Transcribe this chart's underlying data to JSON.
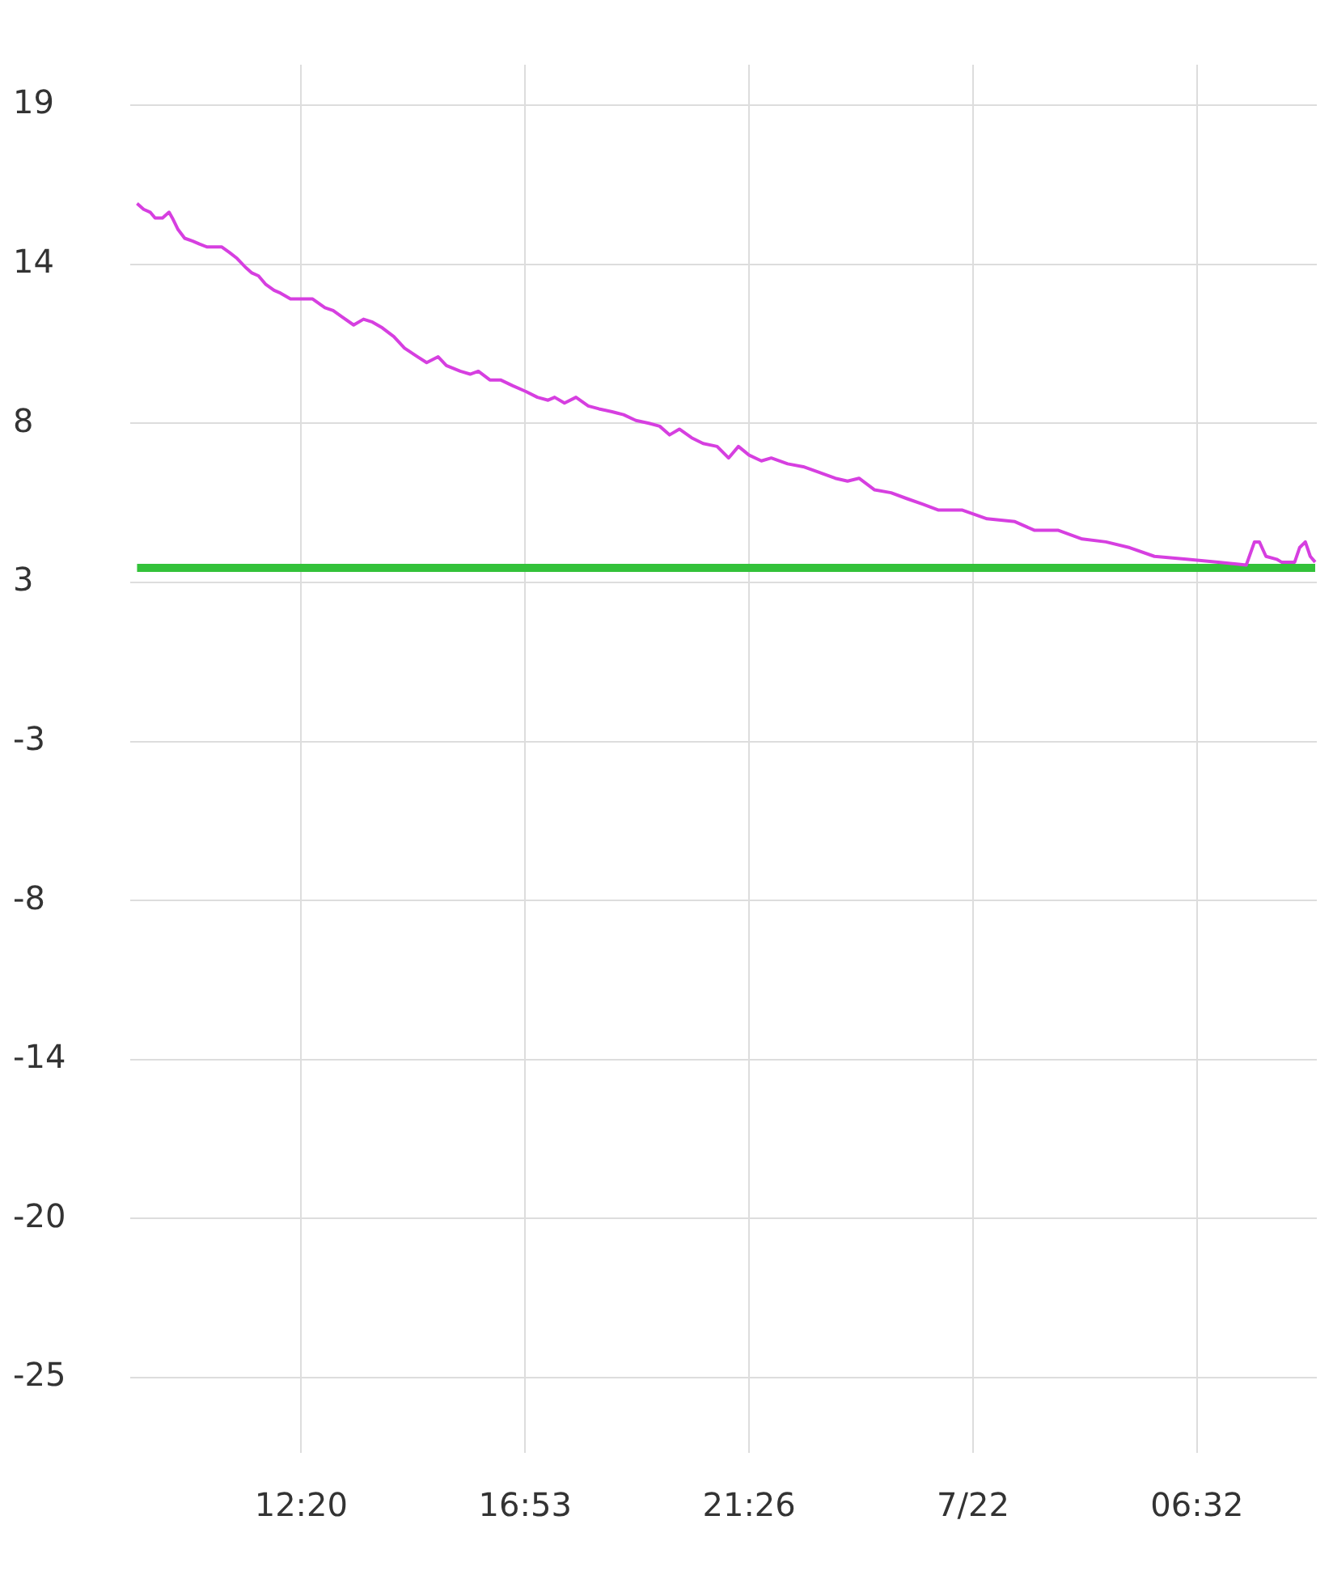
{
  "chart_data": {
    "type": "line",
    "x": [
      "--07-21T09:00",
      "--07-21T09:08",
      "--07-21T09:16",
      "--07-21T09:22",
      "--07-21T09:31",
      "--07-21T09:39",
      "--07-21T09:43",
      "--07-21T09:50",
      "--07-21T09:58",
      "--07-21T10:08",
      "--07-21T10:16",
      "--07-21T10:25",
      "--07-21T10:33",
      "--07-21T10:43",
      "--07-21T10:53",
      "--07-21T11:02",
      "--07-21T11:12",
      "--07-21T11:20",
      "--07-21T11:28",
      "--07-21T11:37",
      "--07-21T11:47",
      "--07-21T11:55",
      "--07-21T12:07",
      "--07-21T12:20",
      "--07-21T12:34",
      "--07-21T12:49",
      "--07-21T12:59",
      "--07-21T13:09",
      "--07-21T13:24",
      "--07-21T13:36",
      "--07-21T13:47",
      "--07-21T13:59",
      "--07-21T14:13",
      "--07-21T14:26",
      "--07-21T14:42",
      "--07-21T14:53",
      "--07-21T15:07",
      "--07-21T15:17",
      "--07-21T15:34",
      "--07-21T15:46",
      "--07-21T15:56",
      "--07-21T16:10",
      "--07-21T16:23",
      "--07-21T16:38",
      "--07-21T16:54",
      "--07-21T17:08",
      "--07-21T17:21",
      "--07-21T17:29",
      "--07-21T17:41",
      "--07-21T17:55",
      "--07-21T18:10",
      "--07-21T18:23",
      "--07-21T18:39",
      "--07-21T18:53",
      "--07-21T19:08",
      "--07-21T19:24",
      "--07-21T19:37",
      "--07-21T19:49",
      "--07-21T20:01",
      "--07-21T20:16",
      "--07-21T20:30",
      "--07-21T20:47",
      "--07-21T21:01",
      "--07-21T21:13",
      "--07-21T21:26",
      "--07-21T21:41",
      "--07-21T21:53",
      "--07-21T22:13",
      "--07-21T22:32",
      "--07-21T22:52",
      "--07-21T23:11",
      "--07-21T23:26",
      "--07-21T23:40",
      "--07-21T23:59",
      "--07-22T00:19",
      "--07-22T00:38",
      "--07-22T00:58",
      "--07-22T01:17",
      "--07-22T01:46",
      "--07-22T02:16",
      "--07-22T02:50",
      "--07-22T03:14",
      "--07-22T03:43",
      "--07-22T04:12",
      "--07-22T04:41",
      "--07-22T05:10",
      "--07-22T05:40",
      "--07-22T06:19",
      "--07-22T06:58",
      "--07-22T07:32",
      "--07-22T07:42",
      "--07-22T07:48",
      "--07-22T07:56",
      "--07-22T08:09",
      "--07-22T08:15",
      "--07-22T08:31",
      "--07-22T08:37",
      "--07-22T08:44",
      "--07-22T08:50",
      "--07-22T08:56"
    ],
    "series": [
      {
        "color": "#d63fe0",
        "values": [
          15.6,
          15.4,
          15.3,
          15.1,
          15.1,
          15.3,
          15.1,
          14.7,
          14.4,
          14.3,
          14.2,
          14.1,
          14.1,
          14.1,
          13.9,
          13.7,
          13.4,
          13.2,
          13.1,
          12.8,
          12.6,
          12.5,
          12.3,
          12.3,
          12.3,
          12.0,
          11.9,
          11.7,
          11.4,
          11.6,
          11.5,
          11.3,
          11.0,
          10.6,
          10.3,
          10.1,
          10.3,
          10.0,
          9.8,
          9.7,
          9.8,
          9.5,
          9.5,
          9.3,
          9.1,
          8.9,
          8.8,
          8.9,
          8.7,
          8.9,
          8.6,
          8.5,
          8.4,
          8.3,
          8.1,
          8.0,
          7.9,
          7.6,
          7.8,
          7.5,
          7.3,
          7.2,
          6.8,
          7.2,
          6.9,
          6.7,
          6.8,
          6.6,
          6.5,
          6.3,
          6.1,
          6.0,
          6.1,
          5.7,
          5.6,
          5.4,
          5.2,
          5.0,
          5.0,
          4.7,
          4.6,
          4.3,
          4.3,
          4.0,
          3.9,
          3.7,
          3.4,
          3.3,
          3.2,
          3.1,
          3.9,
          3.9,
          3.4,
          3.3,
          3.2,
          3.2,
          3.7,
          3.9,
          3.4,
          3.2
        ]
      },
      {
        "color": "#33c23a",
        "x": [
          "--07-21T09:00",
          "--07-22T08:56"
        ],
        "values": [
          3.0,
          3.0
        ]
      }
    ],
    "xlim": [
      "--07-21T08:52",
      "--07-22T08:58"
    ],
    "xticks": [
      {
        "value": "--07-21T12:20",
        "label": "12:20"
      },
      {
        "value": "--07-21T16:53",
        "label": "16:53"
      },
      {
        "value": "--07-21T21:26",
        "label": "21:26"
      },
      {
        "value": "--07-22T01:59",
        "label": "7/22"
      },
      {
        "value": "--07-22T06:32",
        "label": "06:32"
      }
    ],
    "ylim": [
      -27.6,
      20.4
    ],
    "yticks": [
      {
        "value": 19,
        "label": "19"
      },
      {
        "value": 13.5,
        "label": "14"
      },
      {
        "value": 8,
        "label": "8"
      },
      {
        "value": 2.5,
        "label": "3"
      },
      {
        "value": -3,
        "label": "-3"
      },
      {
        "value": -8.5,
        "label": "-8"
      },
      {
        "value": -14,
        "label": "-14"
      },
      {
        "value": -19.5,
        "label": "-20"
      },
      {
        "value": -25,
        "label": "-25"
      }
    ],
    "grid": true,
    "legend": false,
    "marker": "none",
    "line_style": "solid"
  }
}
